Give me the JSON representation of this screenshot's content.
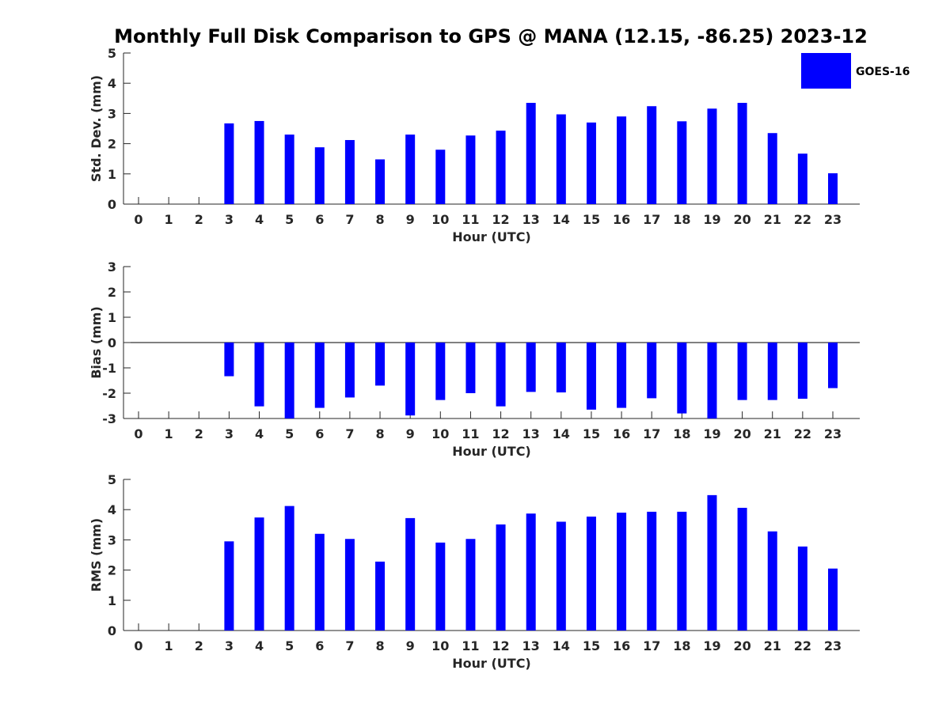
{
  "chart_data": {
    "title": "Monthly Full Disk Comparison to GPS @ MANA (12.15, -86.25) 2023-12",
    "legend": {
      "label": "GOES-16",
      "color": "#0000ff",
      "placement": "top-right"
    },
    "bar_color": "#0000ff",
    "panels": [
      {
        "type": "bar",
        "ylabel": "Std. Dev. (mm)",
        "xlabel": "Hour (UTC)",
        "ylim": [
          0,
          5
        ],
        "yticks": [
          0,
          1,
          2,
          3,
          4,
          5
        ],
        "categories": [
          "0",
          "1",
          "2",
          "3",
          "4",
          "5",
          "6",
          "7",
          "8",
          "9",
          "10",
          "11",
          "12",
          "13",
          "14",
          "15",
          "16",
          "17",
          "18",
          "19",
          "20",
          "21",
          "22",
          "23"
        ],
        "values": [
          null,
          null,
          null,
          2.67,
          2.75,
          2.3,
          1.88,
          2.12,
          1.48,
          2.3,
          1.8,
          2.27,
          2.43,
          3.35,
          2.97,
          2.7,
          2.9,
          3.24,
          2.74,
          3.16,
          3.35,
          2.35,
          1.67,
          1.02
        ]
      },
      {
        "type": "bar",
        "ylabel": "Bias (mm)",
        "xlabel": "Hour (UTC)",
        "ylim": [
          -3,
          3
        ],
        "yticks": [
          -3,
          -2,
          -1,
          0,
          1,
          2,
          3
        ],
        "zero_line": true,
        "categories": [
          "0",
          "1",
          "2",
          "3",
          "4",
          "5",
          "6",
          "7",
          "8",
          "9",
          "10",
          "11",
          "12",
          "13",
          "14",
          "15",
          "16",
          "17",
          "18",
          "19",
          "20",
          "21",
          "22",
          "23"
        ],
        "values": [
          null,
          null,
          null,
          -1.33,
          -2.52,
          -3.0,
          -2.58,
          -2.17,
          -1.7,
          -2.88,
          -2.27,
          -2.0,
          -2.52,
          -1.95,
          -1.97,
          -2.65,
          -2.58,
          -2.2,
          -2.8,
          -3.0,
          -2.27,
          -2.27,
          -2.22,
          -1.8
        ]
      },
      {
        "type": "bar",
        "ylabel": "RMS (mm)",
        "xlabel": "Hour (UTC)",
        "ylim": [
          0,
          5
        ],
        "yticks": [
          0,
          1,
          2,
          3,
          4,
          5
        ],
        "categories": [
          "0",
          "1",
          "2",
          "3",
          "4",
          "5",
          "6",
          "7",
          "8",
          "9",
          "10",
          "11",
          "12",
          "13",
          "14",
          "15",
          "16",
          "17",
          "18",
          "19",
          "20",
          "21",
          "22",
          "23"
        ],
        "values": [
          null,
          null,
          null,
          2.95,
          3.74,
          4.12,
          3.2,
          3.03,
          2.28,
          3.72,
          2.91,
          3.03,
          3.51,
          3.87,
          3.6,
          3.77,
          3.9,
          3.93,
          3.93,
          4.48,
          4.06,
          3.28,
          2.78,
          2.05
        ]
      }
    ]
  }
}
